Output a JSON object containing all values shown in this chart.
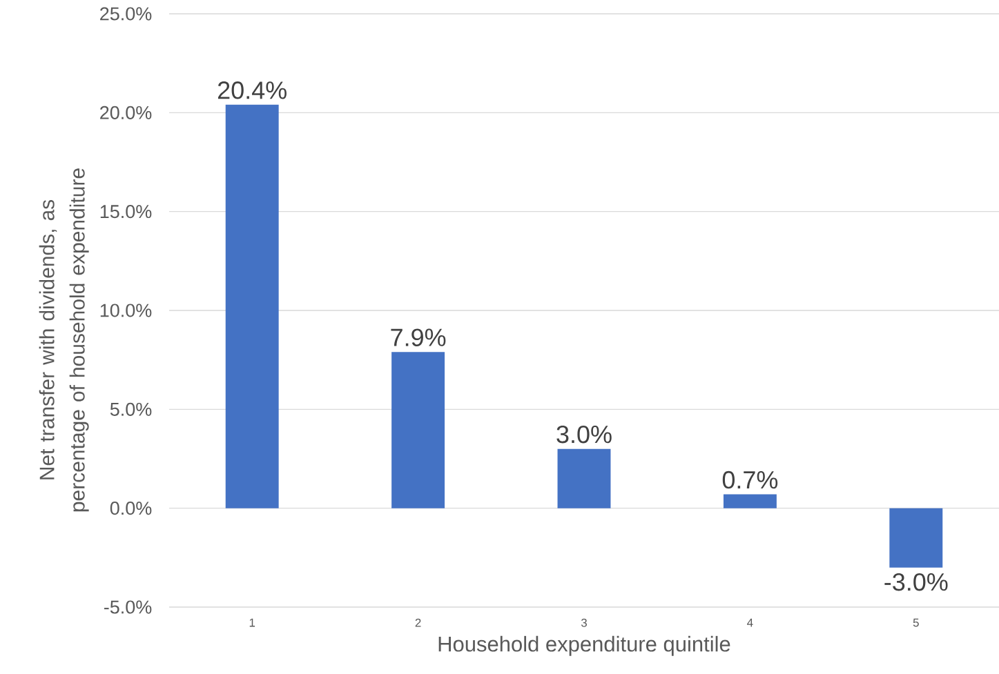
{
  "chart_data": {
    "type": "bar",
    "xlabel": "Household expenditure quintile",
    "ylabel": "Net transfer with dividends, as percentage of household expenditure",
    "categories": [
      "1",
      "2",
      "3",
      "4",
      "5"
    ],
    "values": [
      20.4,
      7.9,
      3.0,
      0.7,
      -3.0
    ],
    "value_labels": [
      "20.4%",
      "7.9%",
      "3.0%",
      "0.7%",
      "-3.0%"
    ],
    "color": "#4472c4",
    "ylim": [
      -5,
      25
    ],
    "yticks": [
      {
        "value": -5,
        "label": "-5.0%"
      },
      {
        "value": 0,
        "label": "0.0%"
      },
      {
        "value": 5,
        "label": "5.0%"
      },
      {
        "value": 10,
        "label": "10.0%"
      },
      {
        "value": 15,
        "label": "15.0%"
      },
      {
        "value": 20,
        "label": "20.0%"
      },
      {
        "value": 25,
        "label": "25.0%"
      }
    ],
    "grid": "y"
  }
}
